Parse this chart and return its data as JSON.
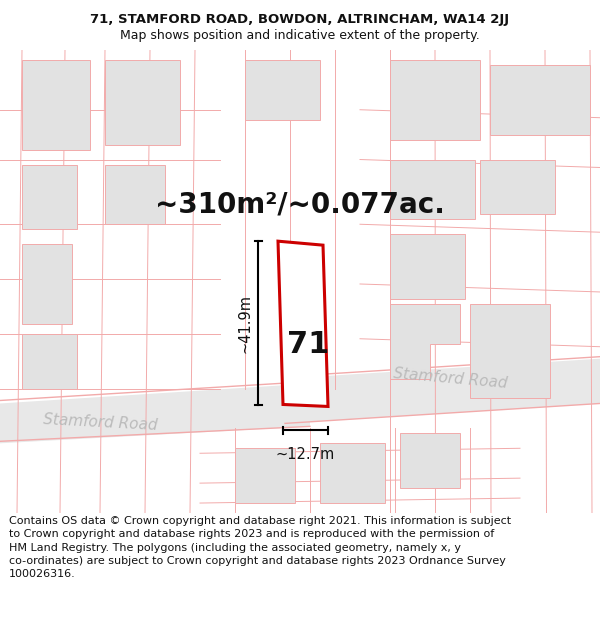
{
  "title_line1": "71, STAMFORD ROAD, BOWDON, ALTRINCHAM, WA14 2JJ",
  "title_line2": "Map shows position and indicative extent of the property.",
  "area_text": "~310m²/~0.077ac.",
  "property_number": "71",
  "dim_height": "~41.9m",
  "dim_width": "~12.7m",
  "road_label_left": "Stamford Road",
  "road_label_right": "Stamford Road",
  "footer_text": "Contains OS data © Crown copyright and database right 2021. This information is subject\nto Crown copyright and database rights 2023 and is reproduced with the permission of\nHM Land Registry. The polygons (including the associated geometry, namely x, y\nco-ordinates) are subject to Crown copyright and database rights 2023 Ordnance Survey\n100026316.",
  "bg_color": "#ffffff",
  "map_bg_color": "#f7f7f7",
  "plot_outline_color": "#cc0000",
  "faint_line_color": "#f2aaaa",
  "gray_block_color": "#e2e2e2",
  "text_color": "#111111",
  "road_text_color": "#bbbbbb",
  "title_fontsize": 9.5,
  "subtitle_fontsize": 9,
  "area_fontsize": 20,
  "property_num_fontsize": 22,
  "dim_fontsize": 10.5,
  "footer_fontsize": 8,
  "road_label_fontsize": 11
}
